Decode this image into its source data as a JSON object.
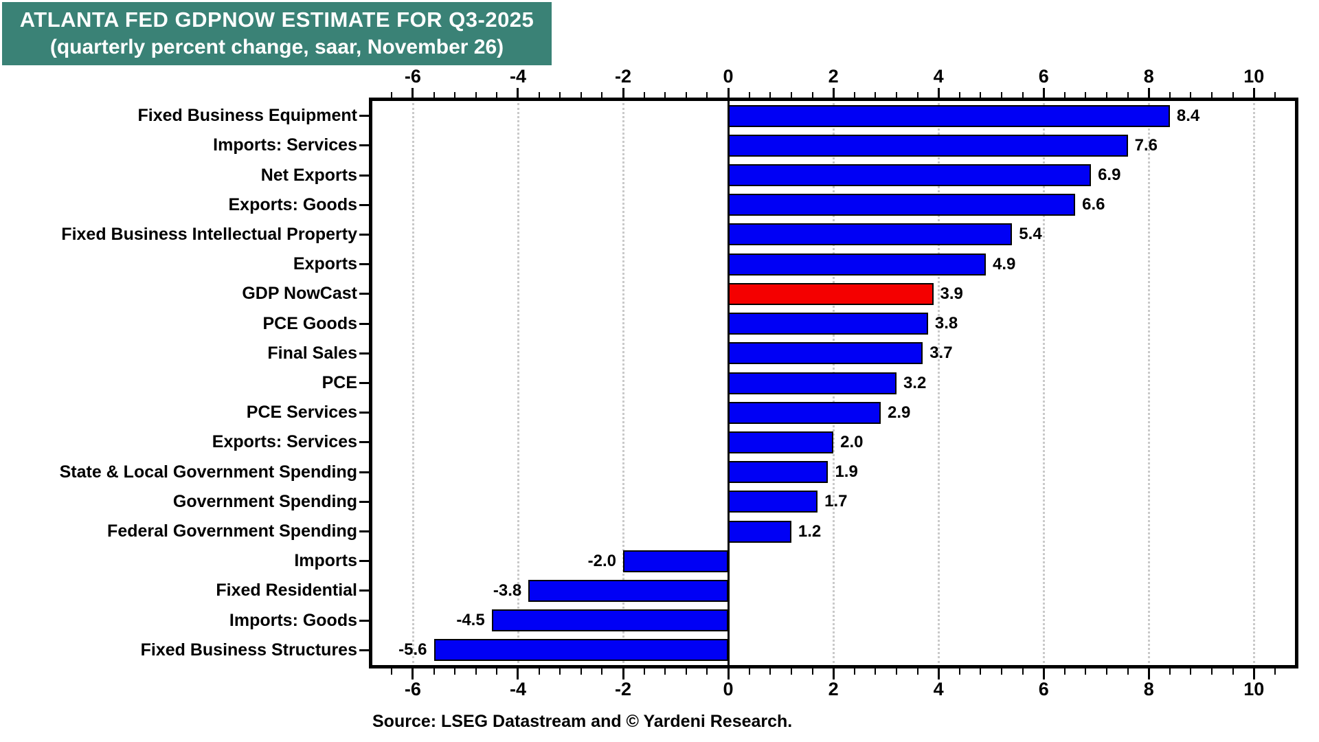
{
  "header": {
    "title": "ATLANTA FED GDPNOW ESTIMATE FOR Q3-2025",
    "subtitle": "(quarterly percent change, saar, November 26)",
    "banner_color": "#3A8276",
    "text_color": "#FFFFFF"
  },
  "source_note": "Source: LSEG Datastream and © Yardeni Research.",
  "chart_data": {
    "type": "bar",
    "orientation": "horizontal",
    "title": "ATLANTA FED GDPNOW ESTIMATE FOR Q3-2025",
    "subtitle": "(quarterly percent change, saar, November 26)",
    "categories": [
      "Fixed Business Equipment",
      "Imports: Services",
      "Net Exports",
      "Exports: Goods",
      "Fixed Business Intellectual Property",
      "Exports",
      "GDP NowCast",
      "PCE Goods",
      "Final Sales",
      "PCE",
      "PCE Services",
      "Exports: Services",
      "State & Local Government Spending",
      "Government Spending",
      "Federal Government Spending",
      "Imports",
      "Fixed Residential",
      "Imports: Goods",
      "Fixed Business Structures"
    ],
    "values": [
      8.4,
      7.6,
      6.9,
      6.6,
      5.4,
      4.9,
      3.9,
      3.8,
      3.7,
      3.2,
      2.9,
      2.0,
      1.9,
      1.7,
      1.2,
      -2.0,
      -3.8,
      -4.5,
      -5.6
    ],
    "value_labels": [
      "8.4",
      "7.6",
      "6.9",
      "6.6",
      "5.4",
      "4.9",
      "3.9",
      "3.8",
      "3.7",
      "3.2",
      "2.9",
      "2.0",
      "1.9",
      "1.7",
      "1.2",
      "-2.0",
      "-3.8",
      "-4.5",
      "-5.6"
    ],
    "highlight_category": "GDP NowCast",
    "highlight_index": 6,
    "bar_color": "#0000F5",
    "highlight_color": "#F40000",
    "axis_ticks": [
      -6,
      -4,
      -2,
      0,
      2,
      4,
      6,
      8,
      10
    ],
    "axis_tick_labels": [
      "-6",
      "-4",
      "-2",
      "0",
      "2",
      "4",
      "6",
      "8",
      "10"
    ],
    "minor_tick_step": 0.4,
    "xlim": [
      -6.77,
      10.78
    ],
    "grid": "vertical dotted gray at major ticks",
    "zero_line": true,
    "legend_position": "none",
    "xlabel": "",
    "ylabel": ""
  }
}
